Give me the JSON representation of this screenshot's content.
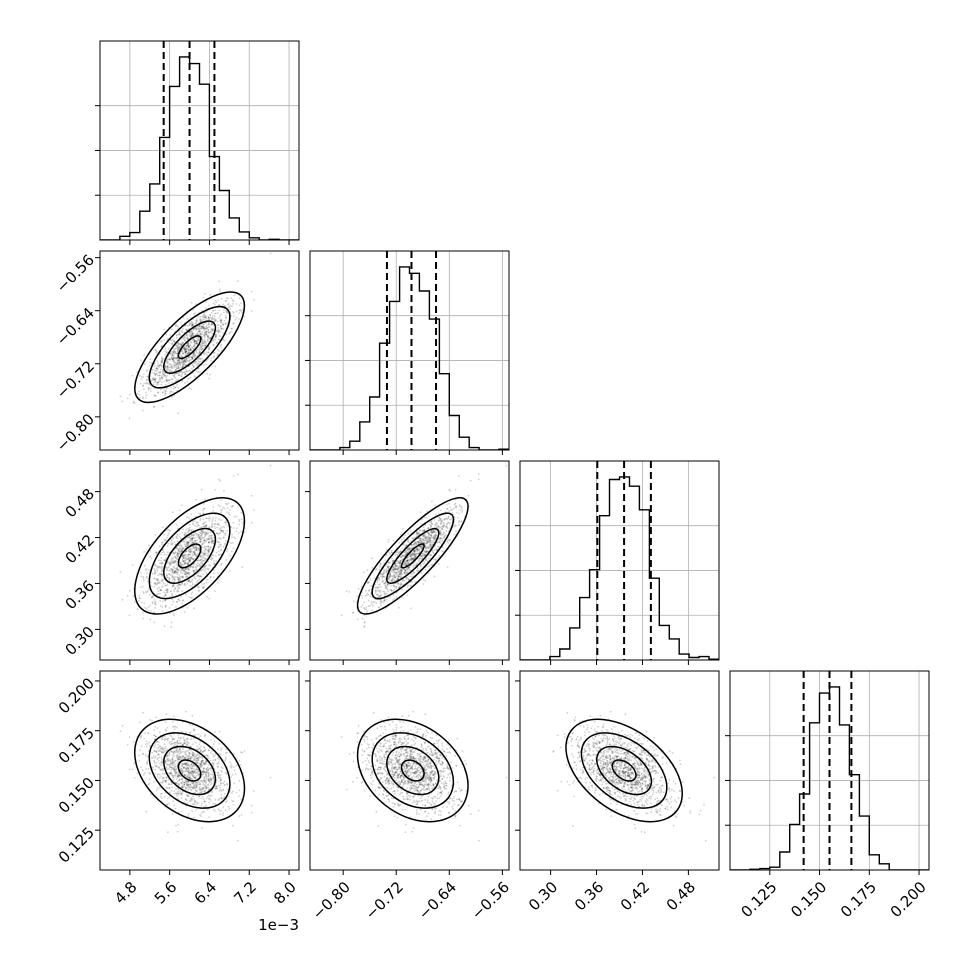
{
  "chart_data": {
    "type": "corner",
    "parameters": [
      {
        "index": 0,
        "range": [
          4.2,
          8.2
        ],
        "ticks": [
          4.8,
          5.6,
          6.4,
          7.2,
          8.0
        ],
        "tick_labels": [
          "4.8",
          "5.6",
          "6.4",
          "7.2",
          "8.0"
        ],
        "offset_label": "1e−3",
        "mean": 6.0,
        "std": 0.45,
        "quantiles": [
          5.48,
          6.0,
          6.5
        ]
      },
      {
        "index": 1,
        "range": [
          -0.85,
          -0.55
        ],
        "ticks": [
          -0.8,
          -0.72,
          -0.64,
          -0.56
        ],
        "tick_labels": [
          "−0.80",
          "−0.72",
          "−0.64",
          "−0.56"
        ],
        "offset_label": "",
        "mean": -0.695,
        "std": 0.034,
        "quantiles": [
          -0.734,
          -0.697,
          -0.66
        ]
      },
      {
        "index": 2,
        "range": [
          0.26,
          0.52
        ],
        "ticks": [
          0.3,
          0.36,
          0.42,
          0.48
        ],
        "tick_labels": [
          "0.30",
          "0.36",
          "0.42",
          "0.48"
        ],
        "offset_label": "",
        "mean": 0.396,
        "std": 0.031,
        "quantiles": [
          0.361,
          0.396,
          0.431
        ]
      },
      {
        "index": 3,
        "range": [
          0.105,
          0.205
        ],
        "ticks": [
          0.125,
          0.15,
          0.175,
          0.2
        ],
        "tick_labels": [
          "0.125",
          "0.150",
          "0.175",
          "0.200"
        ],
        "offset_label": "",
        "mean": 0.155,
        "std": 0.0105,
        "quantiles": [
          0.142,
          0.155,
          0.166
        ]
      }
    ],
    "correlations": [
      [
        1,
        0.75,
        0.6,
        -0.35
      ],
      [
        0.75,
        1,
        0.85,
        -0.3
      ],
      [
        0.6,
        0.85,
        1,
        -0.45
      ],
      [
        -0.35,
        -0.3,
        -0.45,
        1
      ]
    ],
    "grid": true
  }
}
